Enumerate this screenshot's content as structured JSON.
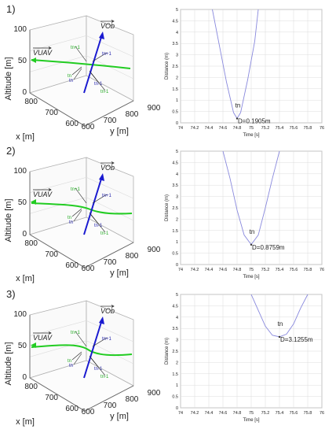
{
  "rows": [
    {
      "label": "1)",
      "left": {
        "z_axis_label": "Altitude [m]",
        "x_axis_label": "x [m]",
        "y_axis_label": "y [m]",
        "z_ticks": [
          "100",
          "50",
          "0"
        ],
        "x_ticks": [
          "800",
          "700",
          "600"
        ],
        "y_ticks": [
          "900",
          "800",
          "700",
          "600"
        ],
        "vob_label": "V_Ob",
        "vuav_label": "V_UAV",
        "marks": [
          {
            "text": "tn+1",
            "color": "#22aa22"
          },
          {
            "text": "tn+1",
            "color": "#2a2ab0"
          },
          {
            "text": "tn",
            "color": "#22aa22"
          },
          {
            "text": "tn",
            "color": "#2a2ab0"
          },
          {
            "text": "tn-1",
            "color": "#2a2ab0"
          },
          {
            "text": "tn-1",
            "color": "#22aa22"
          }
        ]
      },
      "right": {
        "ylabel": "Distance (m)",
        "xlabel": "Time [s]",
        "xticks": [
          "74",
          "74.2",
          "74.4",
          "74.6",
          "74.8",
          "75",
          "75.2",
          "75.4",
          "75.6",
          "75.8",
          "76"
        ],
        "yticks": [
          "0",
          "0.5",
          "1",
          "1.5",
          "2",
          "2.5",
          "3",
          "3.5",
          "4",
          "4.5",
          "5"
        ],
        "min_label": "tn",
        "annotation": "D=0.1905m"
      }
    },
    {
      "label": "2)",
      "left": {
        "z_axis_label": "Altitude [m]",
        "x_axis_label": "x [m]",
        "y_axis_label": "y [m]",
        "z_ticks": [
          "100",
          "50",
          "0"
        ],
        "x_ticks": [
          "800",
          "700",
          "600"
        ],
        "y_ticks": [
          "900",
          "800",
          "700",
          "600"
        ],
        "vob_label": "V_Ob",
        "vuav_label": "V_UAV",
        "marks": [
          {
            "text": "tn+1",
            "color": "#22aa22"
          },
          {
            "text": "tn+1",
            "color": "#2a2ab0"
          },
          {
            "text": "tn",
            "color": "#22aa22"
          },
          {
            "text": "tn",
            "color": "#2a2ab0"
          },
          {
            "text": "tn-1",
            "color": "#2a2ab0"
          },
          {
            "text": "tn-1",
            "color": "#22aa22"
          }
        ]
      },
      "right": {
        "ylabel": "Distance (m)",
        "xlabel": "Time [s]",
        "xticks": [
          "74",
          "74.2",
          "74.4",
          "74.6",
          "74.8",
          "75",
          "75.2",
          "75.4",
          "75.6",
          "75.8",
          "76"
        ],
        "yticks": [
          "0",
          "0.5",
          "1",
          "1.5",
          "2",
          "2.5",
          "3",
          "3.5",
          "4",
          "4.5",
          "5"
        ],
        "min_label": "tn",
        "annotation": "D=0.8759m"
      }
    },
    {
      "label": "3)",
      "left": {
        "z_axis_label": "Altitude [m]",
        "x_axis_label": "x [m]",
        "y_axis_label": "y [m]",
        "z_ticks": [
          "100",
          "50",
          "0"
        ],
        "x_ticks": [
          "800",
          "700",
          "600"
        ],
        "y_ticks": [
          "900",
          "800",
          "700",
          "600"
        ],
        "vob_label": "V_Ob",
        "vuav_label": "V_UAV",
        "marks": [
          {
            "text": "tn+1",
            "color": "#22aa22"
          },
          {
            "text": "tn+1",
            "color": "#2a2ab0"
          },
          {
            "text": "tn",
            "color": "#22aa22"
          },
          {
            "text": "tn",
            "color": "#2a2ab0"
          },
          {
            "text": "tn-1",
            "color": "#2a2ab0"
          },
          {
            "text": "tn-1",
            "color": "#22aa22"
          }
        ]
      },
      "right": {
        "ylabel": "Distance (m)",
        "xlabel": "Time [s]",
        "xticks": [
          "74",
          "74.2",
          "74.4",
          "74.6",
          "74.8",
          "75",
          "75.2",
          "75.4",
          "75.6",
          "75.8",
          "76"
        ],
        "yticks": [
          "0",
          "0.5",
          "1",
          "1.5",
          "2",
          "2.5",
          "3",
          "3.5",
          "4",
          "4.5",
          "5"
        ],
        "min_label": "tn",
        "annotation": "D=3.1255m"
      }
    }
  ],
  "colors": {
    "uav_path": "#22cc22",
    "obstacle_path": "#1a1ad0",
    "distance_curve": "#8888dd",
    "grid": "#dcdcdc"
  },
  "chart_data": [
    {
      "type": "line",
      "xlabel": "Time [s]",
      "ylabel": "Distance (m)",
      "xlim": [
        74,
        76
      ],
      "ylim": [
        0,
        5
      ],
      "series": [
        {
          "x": [
            74.45,
            74.55,
            74.65,
            74.75,
            74.8,
            74.85,
            74.95,
            75.05,
            75.1
          ],
          "y": [
            5.0,
            3.4,
            1.8,
            0.45,
            0.19,
            0.45,
            1.9,
            3.6,
            5.0
          ]
        }
      ],
      "annotation": {
        "x": 74.8,
        "y": 0.1905,
        "text": "D=0.1905m"
      }
    },
    {
      "type": "line",
      "xlabel": "Time [s]",
      "ylabel": "Distance (m)",
      "xlim": [
        74,
        76
      ],
      "ylim": [
        0,
        5
      ],
      "series": [
        {
          "x": [
            74.6,
            74.7,
            74.8,
            74.9,
            75.0,
            75.1,
            75.2,
            75.3,
            75.4
          ],
          "y": [
            5.0,
            3.8,
            2.4,
            1.3,
            0.88,
            1.3,
            2.5,
            3.8,
            5.0
          ]
        }
      ],
      "annotation": {
        "x": 75.0,
        "y": 0.8759,
        "text": "D=0.8759m"
      }
    },
    {
      "type": "line",
      "xlabel": "Time [s]",
      "ylabel": "Distance (m)",
      "xlim": [
        74,
        76
      ],
      "ylim": [
        0,
        5
      ],
      "series": [
        {
          "x": [
            75.0,
            75.1,
            75.2,
            75.3,
            75.4,
            75.5,
            75.6,
            75.7,
            75.8
          ],
          "y": [
            5.0,
            4.3,
            3.6,
            3.2,
            3.13,
            3.25,
            3.7,
            4.4,
            5.0
          ]
        }
      ],
      "annotation": {
        "x": 75.4,
        "y": 3.1255,
        "text": "D=3.1255m"
      }
    }
  ]
}
